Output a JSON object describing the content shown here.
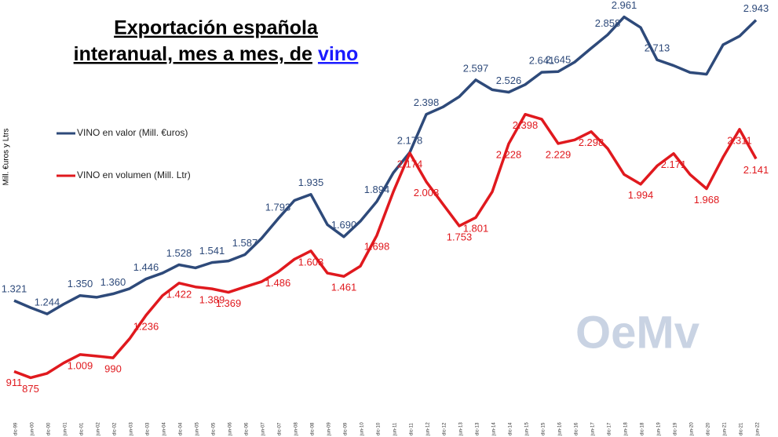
{
  "chart_data": {
    "type": "line",
    "title": [
      "Exportación española",
      "interanual, mes a mes, de"
    ],
    "title_link": "vino",
    "ylabel": "Mill. €uros y Ltrs",
    "watermark": "OeMv",
    "categories": [
      "dic-99",
      "jun-00",
      "dic-00",
      "jun-01",
      "dic-01",
      "jun-02",
      "dic-02",
      "jun-03",
      "dic-03",
      "jun-04",
      "dic-04",
      "jun-05",
      "dic-05",
      "jun-06",
      "dic-06",
      "jun-07",
      "dic-07",
      "jun-08",
      "dic-08",
      "jun-09",
      "dic-09",
      "jun-10",
      "dic-10",
      "jun-11",
      "dic-11",
      "jun-12",
      "dic-12",
      "jun-13",
      "dic-13",
      "jun-14",
      "dic-14",
      "jun-15",
      "dic-15",
      "jun-16",
      "dic-16",
      "jun-17",
      "dic-17",
      "jun-18",
      "dic-18",
      "jun-19",
      "dic-19",
      "jun-20",
      "dic-20",
      "jun-21",
      "dic-21",
      "jun-22"
    ],
    "ylim": [
      700,
      3050
    ],
    "legend": "upper left",
    "series": [
      {
        "name": "VINO en valor (Mill. €uros)",
        "color": "#2e4a7a",
        "values": [
          1321,
          1280,
          1244,
          1300,
          1350,
          1340,
          1360,
          1390,
          1446,
          1480,
          1528,
          1510,
          1541,
          1550,
          1587,
          1680,
          1793,
          1900,
          1935,
          1760,
          1690,
          1780,
          1894,
          2060,
          2178,
          2398,
          2440,
          2500,
          2597,
          2540,
          2526,
          2570,
          2641,
          2645,
          2700,
          2780,
          2858,
          2961,
          2900,
          2713,
          2680,
          2640,
          2630,
          2800,
          2850,
          2943
        ],
        "value_labels": [
          "1.321",
          null,
          "1.244",
          null,
          "1.350",
          null,
          "1.360",
          null,
          "1.446",
          null,
          "1.528",
          null,
          "1.541",
          null,
          "1.587",
          null,
          "1.793",
          null,
          "1.935",
          null,
          "1.690",
          null,
          "1.894",
          null,
          "2.178",
          "2.398",
          null,
          null,
          "2.597",
          null,
          "2.526",
          null,
          "2.641",
          "2.645",
          null,
          null,
          "2.858",
          "2.961",
          null,
          "2.713",
          null,
          null,
          null,
          null,
          null,
          "2.943"
        ]
      },
      {
        "name": "VINO en volumen (Mill. Ltr)",
        "color": "#e0191e",
        "values": [
          911,
          875,
          900,
          960,
          1009,
          1000,
          990,
          1100,
          1236,
          1350,
          1422,
          1400,
          1389,
          1369,
          1400,
          1430,
          1486,
          1560,
          1608,
          1480,
          1461,
          1520,
          1698,
          1950,
          2174,
          2008,
          1880,
          1753,
          1801,
          1950,
          2228,
          2398,
          2370,
          2229,
          2250,
          2298,
          2200,
          2050,
          1994,
          2100,
          2171,
          2050,
          1968,
          2150,
          2311,
          2141
        ],
        "value_labels": [
          "911",
          "875",
          null,
          null,
          "1.009",
          null,
          "990",
          null,
          "1.236",
          null,
          "1.422",
          null,
          "1.389",
          "1.369",
          null,
          null,
          "1.486",
          null,
          "1.608",
          null,
          "1.461",
          null,
          "1.698",
          null,
          "2.174",
          "2.008",
          null,
          "1.753",
          "1.801",
          null,
          "2.228",
          "2.398",
          null,
          "2.229",
          null,
          "2.298",
          null,
          null,
          "1.994",
          null,
          "2.171",
          null,
          "1.968",
          null,
          "2.311",
          "2.141"
        ]
      }
    ]
  }
}
